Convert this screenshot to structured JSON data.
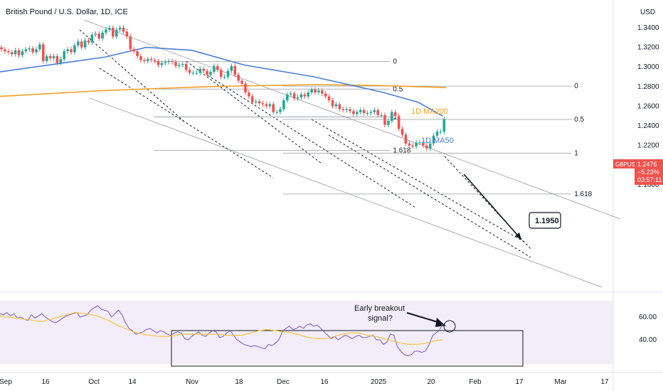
{
  "header": {
    "symbol_title": "British Pound / U.S. Dollar, 1D, ICE",
    "currency": "USD"
  },
  "colors": {
    "up": "#26a69a",
    "down": "#ef5350",
    "ma50": "#4a7fd6",
    "ma200": "#f0a020",
    "rsi": "#7e57c2",
    "rsi_ma": "#f5c542",
    "rsi_band": "#ede7f6"
  },
  "chart_data": {
    "type": "candlestick",
    "symbol_title": "British Pound / U.S. Dollar, 1D, ICE",
    "y_unit": "USD",
    "ylim": [
      1.16,
      1.35
    ],
    "x_tick_labels": [
      "Sep",
      "16",
      "Oct",
      "14",
      "Nov",
      "18",
      "Dec",
      "16",
      "2025",
      "20",
      "Feb",
      "17",
      "Mar",
      "17"
    ],
    "y_tick_labels": [
      "1.3400",
      "1.3200",
      "1.3000",
      "1.2800",
      "1.2600",
      "1.2400",
      "1.2200",
      "1.2000",
      "1.1800"
    ],
    "last_price": {
      "ticker": "GBPUSD",
      "price": "1.2476",
      "change": "−5.23%",
      "countdown": "03:57:11"
    },
    "close_series": [
      1.318,
      1.316,
      1.315,
      1.313,
      1.317,
      1.312,
      1.316,
      1.318,
      1.319,
      1.315,
      1.318,
      1.323,
      1.306,
      1.311,
      1.309,
      1.311,
      1.304,
      1.308,
      1.316,
      1.318,
      1.315,
      1.322,
      1.326,
      1.32,
      1.327,
      1.325,
      1.333,
      1.334,
      1.329,
      1.335,
      1.338,
      1.34,
      1.331,
      1.338,
      1.34,
      1.336,
      1.331,
      1.318,
      1.316,
      1.311,
      1.307,
      1.306,
      1.308,
      1.307,
      1.306,
      1.302,
      1.304,
      1.305,
      1.306,
      1.305,
      1.301,
      1.302,
      1.303,
      1.297,
      1.294,
      1.294,
      1.294,
      1.298,
      1.296,
      1.292,
      1.295,
      1.301,
      1.297,
      1.29,
      1.29,
      1.296,
      1.301,
      1.292,
      1.286,
      1.283,
      1.274,
      1.27,
      1.264,
      1.265,
      1.263,
      1.262,
      1.26,
      1.262,
      1.254,
      1.254,
      1.257,
      1.266,
      1.272,
      1.273,
      1.268,
      1.269,
      1.272,
      1.27,
      1.274,
      1.277,
      1.274,
      1.276,
      1.273,
      1.27,
      1.266,
      1.26,
      1.262,
      1.257,
      1.256,
      1.257,
      1.255,
      1.252,
      1.254,
      1.256,
      1.253,
      1.253,
      1.254,
      1.256,
      1.251,
      1.251,
      1.241,
      1.245,
      1.254,
      1.25,
      1.237,
      1.231,
      1.222,
      1.22,
      1.219,
      1.223,
      1.223,
      1.22,
      1.217,
      1.222,
      1.23,
      1.234,
      1.234,
      1.247
    ],
    "series": [
      {
        "name": "1D MA50",
        "label": "1D MA50"
      },
      {
        "name": "1D MA200",
        "label": "1D MA200"
      }
    ],
    "ma50_points": [
      [
        0,
        1.295
      ],
      [
        30,
        1.31
      ],
      [
        42,
        1.32
      ],
      [
        55,
        1.317
      ],
      [
        70,
        1.302
      ],
      [
        90,
        1.29
      ],
      [
        110,
        1.274
      ],
      [
        120,
        1.264
      ],
      [
        127,
        1.25
      ]
    ],
    "ma200_points": [
      [
        0,
        1.27
      ],
      [
        30,
        1.276
      ],
      [
        60,
        1.28
      ],
      [
        90,
        1.282
      ],
      [
        110,
        1.281
      ],
      [
        128,
        1.279
      ]
    ],
    "fib_levels": [
      {
        "label": "0",
        "price": 1.3055,
        "x_from": 36,
        "x_to": 96
      },
      {
        "label": "0.5",
        "price": 1.2775,
        "x_from": 36,
        "x_to": 96
      },
      {
        "label": "1",
        "price": 1.249,
        "x_from": 36,
        "x_to": 96
      },
      {
        "label": "1.618",
        "price": 1.215,
        "x_from": 36,
        "x_to": 96
      },
      {
        "label": "0",
        "price": 1.2805,
        "x_from": 73,
        "x_to": 148
      },
      {
        "label": "0.5",
        "price": 1.2465,
        "x_from": 73,
        "x_to": 148
      },
      {
        "label": "1",
        "price": 1.212,
        "x_from": 73,
        "x_to": 148
      },
      {
        "label": "1.618",
        "price": 1.1705,
        "x_from": 73,
        "x_to": 148
      }
    ],
    "annotations": {
      "target": "1.1950",
      "ma200_label": "1D MA200",
      "ma50_label": "1D MA50",
      "rsi_note": "Early breakout signal?"
    },
    "rsi": {
      "ylim": [
        25,
        75
      ],
      "y_tick_labels": [
        "60.00",
        "40.00"
      ],
      "values": [
        63,
        62,
        64,
        61,
        63,
        59,
        60,
        58,
        57,
        62,
        59,
        61,
        63,
        60,
        58,
        56,
        55,
        57,
        59,
        61,
        62,
        63,
        64,
        60,
        61,
        62,
        66,
        68,
        70,
        67,
        66,
        65,
        60,
        63,
        66,
        62,
        55,
        50,
        48,
        45,
        46,
        47,
        49,
        50,
        48,
        46,
        48,
        47,
        45,
        44,
        46,
        47,
        46,
        41,
        40,
        43,
        45,
        47,
        44,
        43,
        46,
        48,
        47,
        42,
        43,
        46,
        48,
        44,
        40,
        38,
        36,
        35,
        34,
        35,
        34,
        33,
        32,
        36,
        35,
        37,
        40,
        47,
        50,
        52,
        49,
        50,
        52,
        50,
        53,
        54,
        52,
        53,
        50,
        47,
        44,
        41,
        43,
        40,
        42,
        44,
        43,
        41,
        43,
        44,
        42,
        42,
        43,
        44,
        40,
        40,
        36,
        38,
        45,
        44,
        34,
        30,
        27,
        26,
        27,
        30,
        30,
        29,
        30,
        35,
        43,
        46,
        48,
        54
      ],
      "ma_values": [
        61,
        60,
        59,
        58,
        57,
        56,
        58,
        60,
        62,
        64,
        63,
        62,
        60,
        57,
        53,
        50,
        47,
        45,
        44,
        43,
        43,
        44,
        45,
        45,
        45,
        45,
        45,
        44,
        44,
        44,
        46,
        48,
        49,
        48,
        47,
        46,
        44,
        42,
        41,
        41,
        43,
        45,
        46,
        46,
        44,
        43,
        41,
        39,
        37,
        36,
        36,
        37,
        39,
        40
      ]
    }
  }
}
